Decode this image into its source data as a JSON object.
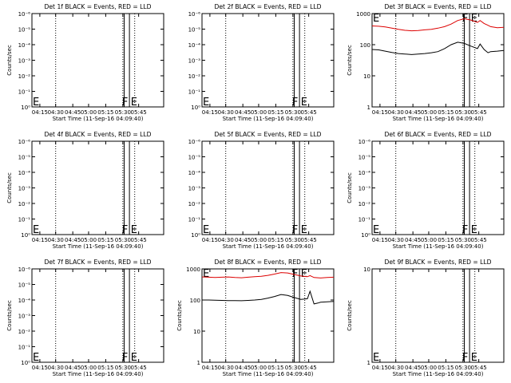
{
  "chart_data": [
    {
      "type": "line",
      "title": "Det 1f BLACK = Events, RED = LLD",
      "ylabel": "Counts/sec",
      "xlabel": "Start Time (11-Sep-16 04:09:40)",
      "y_tick_labels": [
        "10⁰",
        "10⁻¹",
        "10⁻²",
        "10⁻³",
        "10⁻⁴",
        "10⁻⁵",
        "10⁻⁶"
      ],
      "x_tick_labels": [
        "04:15",
        "04:30",
        "04:45",
        "05:00",
        "05:15",
        "05:30",
        "05:45"
      ],
      "marks": {
        "left": "E",
        "flare": "F",
        "end": "E"
      },
      "series": []
    },
    {
      "type": "line",
      "title": "Det 2f BLACK = Events, RED = LLD",
      "ylabel": "",
      "xlabel": "Start Time (11-Sep-16 04:09:40)",
      "y_tick_labels": [
        "10⁰",
        "10⁻¹",
        "10⁻²",
        "10⁻³",
        "10⁻⁴",
        "10⁻⁵",
        "10⁻⁶"
      ],
      "x_tick_labels": [
        "04:15",
        "04:30",
        "04:45",
        "05:00",
        "05:15",
        "05:30",
        "05:45"
      ],
      "marks": {
        "left": "E",
        "flare": "F",
        "end": "E"
      },
      "series": []
    },
    {
      "type": "line",
      "title": "Det 3f BLACK = Events, RED = LLD",
      "ylabel": "Counts/sec",
      "xlabel": "Start Time (11-Sep-16 04:09:40)",
      "y_tick_labels": [
        "1",
        "10",
        "100",
        "1000"
      ],
      "ylog": true,
      "ylim": [
        1,
        1000
      ],
      "x_tick_labels": [
        "04:15",
        "04:30",
        "04:45",
        "05:00",
        "05:15",
        "05:30",
        "05:45"
      ],
      "marks": {
        "left": "E",
        "flare": "F",
        "end": "E"
      },
      "series": [
        {
          "color": "#dd0000",
          "x": [
            0,
            5,
            10,
            15,
            20,
            25,
            30,
            35,
            40,
            45,
            50,
            55,
            60,
            65,
            70,
            75,
            80,
            82,
            85,
            88,
            90,
            95,
            100
          ],
          "y": [
            400,
            390,
            370,
            340,
            310,
            290,
            280,
            285,
            300,
            310,
            340,
            380,
            460,
            600,
            680,
            620,
            520,
            600,
            480,
            420,
            380,
            350,
            360
          ]
        },
        {
          "color": "#000000",
          "x": [
            0,
            5,
            10,
            15,
            20,
            25,
            30,
            35,
            40,
            45,
            50,
            55,
            60,
            65,
            70,
            75,
            80,
            82,
            85,
            88,
            90,
            95,
            100
          ],
          "y": [
            70,
            68,
            62,
            56,
            52,
            50,
            48,
            50,
            52,
            55,
            60,
            75,
            100,
            120,
            110,
            90,
            75,
            105,
            70,
            55,
            60,
            62,
            65
          ]
        }
      ]
    },
    {
      "type": "line",
      "title": "Det 4f BLACK = Events, RED = LLD",
      "ylabel": "Counts/sec",
      "xlabel": "Start Time (11-Sep-16 04:09:40)",
      "y_tick_labels": [
        "10⁰",
        "10⁻¹",
        "10⁻²",
        "10⁻³",
        "10⁻⁴",
        "10⁻⁵",
        "10⁻⁶"
      ],
      "x_tick_labels": [
        "04:15",
        "04:30",
        "04:45",
        "05:00",
        "05:15",
        "05:30",
        "05:45"
      ],
      "marks": {
        "left": "E",
        "flare": "F",
        "end": "E"
      },
      "series": []
    },
    {
      "type": "line",
      "title": "Det 5f BLACK = Events, RED = LLD",
      "ylabel": "",
      "xlabel": "Start Time (11-Sep-16 04:09:40)",
      "y_tick_labels": [
        "10⁰",
        "10⁻¹",
        "10⁻²",
        "10⁻³",
        "10⁻⁴",
        "10⁻⁵",
        "10⁻⁶"
      ],
      "x_tick_labels": [
        "04:15",
        "04:30",
        "04:45",
        "05:00",
        "05:15",
        "05:30",
        "05:45"
      ],
      "marks": {
        "left": "E",
        "flare": "F",
        "end": "E"
      },
      "series": []
    },
    {
      "type": "line",
      "title": "Det 6f BLACK = Events, RED = LLD",
      "ylabel": "Counts/sec",
      "xlabel": "Start Time (11-Sep-16 04:09:40)",
      "y_tick_labels": [
        "10⁰",
        "10⁻¹",
        "10⁻²",
        "10⁻³",
        "10⁻⁴",
        "10⁻⁵",
        "10⁻⁶"
      ],
      "x_tick_labels": [
        "04:15",
        "04:30",
        "04:45",
        "05:00",
        "05:15",
        "05:30",
        "05:45"
      ],
      "marks": {
        "left": "E",
        "flare": "F",
        "end": "E"
      },
      "series": []
    },
    {
      "type": "line",
      "title": "Det 7f BLACK = Events, RED = LLD",
      "ylabel": "Counts/sec",
      "xlabel": "Start Time (11-Sep-16 04:09:40)",
      "y_tick_labels": [
        "10⁰",
        "10⁻¹",
        "10⁻²",
        "10⁻³",
        "10⁻⁴",
        "10⁻⁵",
        "10⁻⁶"
      ],
      "x_tick_labels": [
        "04:15",
        "04:30",
        "04:45",
        "05:00",
        "05:15",
        "05:30",
        "05:45"
      ],
      "marks": {
        "left": "E",
        "flare": "F",
        "end": "E"
      },
      "series": []
    },
    {
      "type": "line",
      "title": "Det 8f BLACK = Events, RED = LLD",
      "ylabel": "Counts/sec",
      "xlabel": "Start Time (11-Sep-16 04:09:40)",
      "y_tick_labels": [
        "1",
        "10",
        "100",
        "1000"
      ],
      "ylog": true,
      "ylim": [
        1,
        1000
      ],
      "x_tick_labels": [
        "04:15",
        "04:30",
        "04:45",
        "05:00",
        "05:15",
        "05:30",
        "05:45"
      ],
      "marks": {
        "left": "E",
        "flare": "F",
        "end": "E"
      },
      "series": [
        {
          "color": "#dd0000",
          "x": [
            0,
            5,
            10,
            15,
            20,
            25,
            30,
            35,
            40,
            45,
            50,
            55,
            60,
            65,
            70,
            75,
            80,
            82,
            85,
            88,
            90,
            95,
            100
          ],
          "y": [
            550,
            540,
            530,
            540,
            550,
            530,
            520,
            540,
            560,
            580,
            620,
            680,
            760,
            740,
            660,
            590,
            560,
            610,
            530,
            520,
            510,
            530,
            540
          ]
        },
        {
          "color": "#000000",
          "x": [
            0,
            5,
            10,
            15,
            20,
            25,
            30,
            35,
            40,
            45,
            50,
            55,
            60,
            65,
            70,
            75,
            80,
            82,
            85,
            88,
            90,
            95,
            100
          ],
          "y": [
            100,
            100,
            98,
            97,
            96,
            96,
            95,
            97,
            100,
            105,
            115,
            130,
            150,
            140,
            120,
            105,
            110,
            190,
            75,
            80,
            85,
            88,
            90
          ]
        }
      ]
    },
    {
      "type": "line",
      "title": "Det 9f BLACK = Events, RED = LLD",
      "ylabel": "Counts/sec",
      "xlabel": "Start Time (11-Sep-16 04:09:40)",
      "y_tick_labels": [
        "1",
        "10"
      ],
      "ylog": true,
      "ylim": [
        1,
        10
      ],
      "x_tick_labels": [
        "04:15",
        "04:30",
        "04:45",
        "05:00",
        "05:15",
        "05:30",
        "05:45"
      ],
      "marks": {
        "left": "E",
        "flare": "F",
        "end": "E"
      },
      "series": []
    }
  ]
}
